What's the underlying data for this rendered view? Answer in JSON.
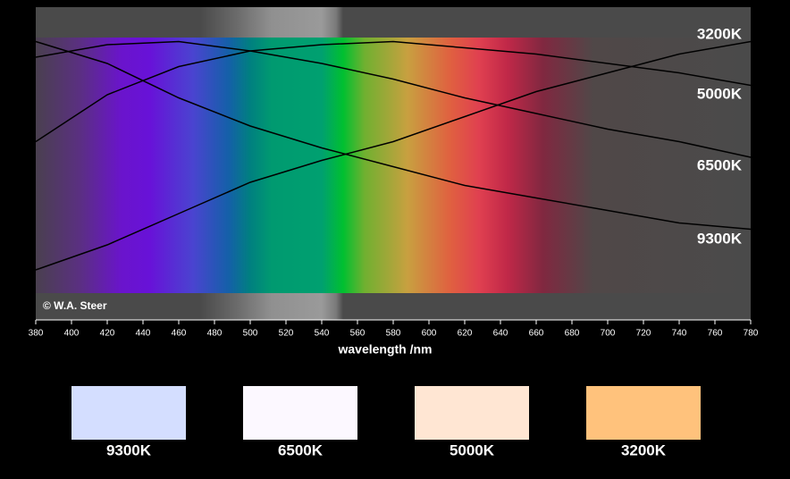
{
  "chart_data": {
    "type": "line",
    "xlabel": "wavelength /nm",
    "annotation": "© W.A. Steer",
    "x": [
      380,
      420,
      460,
      500,
      540,
      580,
      620,
      660,
      700,
      740,
      780
    ],
    "xlim": [
      380,
      780
    ],
    "xticks": [
      380,
      400,
      420,
      440,
      460,
      480,
      500,
      520,
      540,
      560,
      580,
      600,
      620,
      640,
      660,
      680,
      700,
      720,
      740,
      760,
      780
    ],
    "ylim": [
      0,
      1
    ],
    "series": [
      {
        "name": "3200K",
        "color": "#000000",
        "values": [
          0.16,
          0.24,
          0.34,
          0.44,
          0.51,
          0.57,
          0.65,
          0.73,
          0.79,
          0.85,
          0.89
        ]
      },
      {
        "name": "5000K",
        "color": "#000000",
        "values": [
          0.57,
          0.72,
          0.81,
          0.86,
          0.88,
          0.89,
          0.87,
          0.85,
          0.82,
          0.79,
          0.75
        ]
      },
      {
        "name": "6500K",
        "color": "#000000",
        "values": [
          0.84,
          0.88,
          0.89,
          0.86,
          0.82,
          0.77,
          0.71,
          0.66,
          0.61,
          0.57,
          0.52
        ]
      },
      {
        "name": "9300K",
        "color": "#000000",
        "values": [
          0.89,
          0.82,
          0.71,
          0.62,
          0.55,
          0.49,
          0.43,
          0.39,
          0.35,
          0.31,
          0.29
        ]
      }
    ],
    "swatches": [
      {
        "label": "9300K",
        "color": "#d4deff"
      },
      {
        "label": "6500K",
        "color": "#fcf8ff"
      },
      {
        "label": "5000K",
        "color": "#ffe6d3"
      },
      {
        "label": "3200K",
        "color": "#ffc27c"
      }
    ]
  }
}
